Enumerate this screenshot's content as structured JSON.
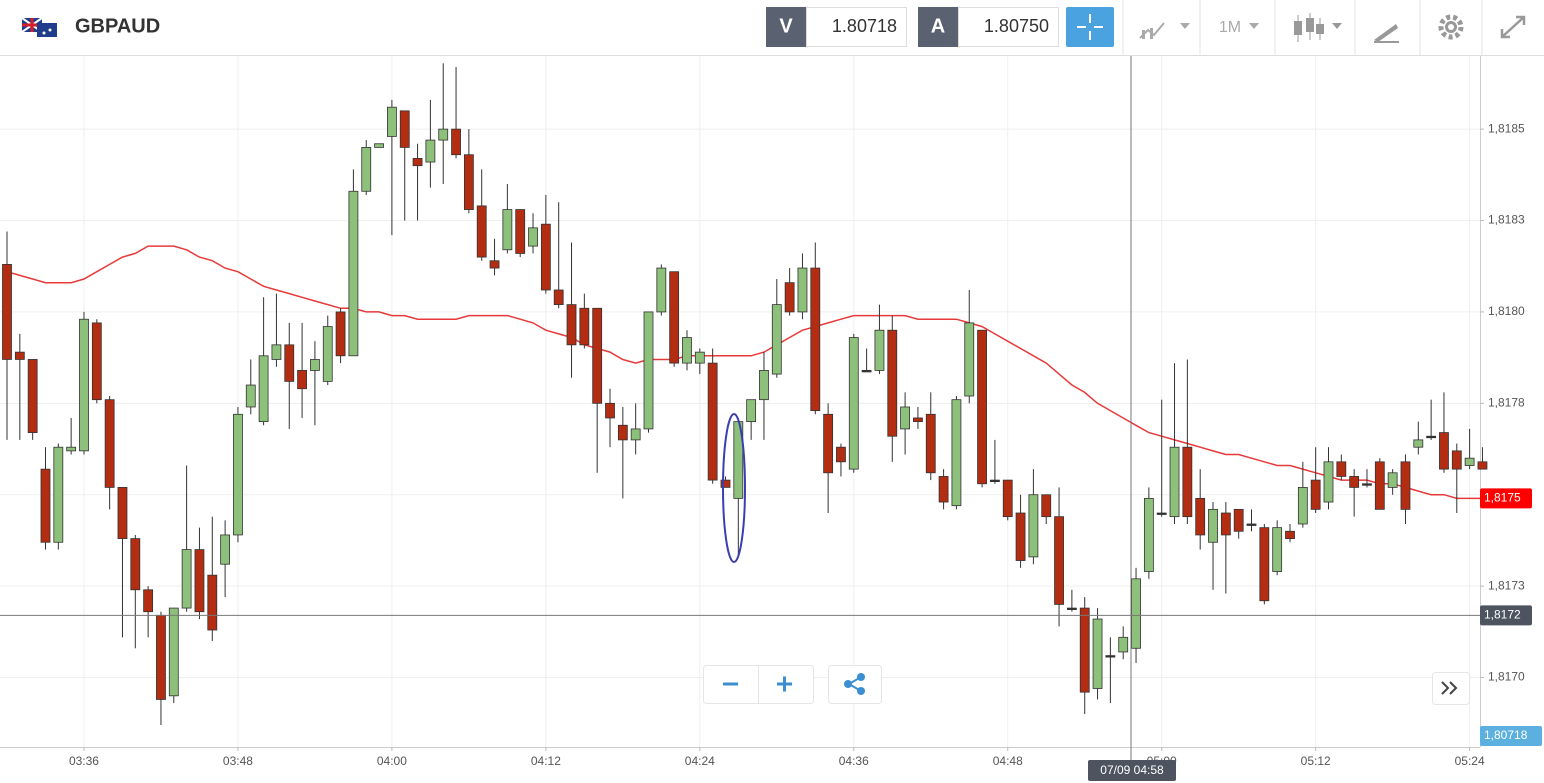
{
  "header": {
    "symbol": "GBPAUD",
    "bid_letter": "V",
    "bid": "1.80718",
    "ask_letter": "A",
    "ask": "1.80750",
    "timeframe": "1M"
  },
  "chart_data": {
    "type": "candlestick",
    "categories": [
      null,
      null,
      null,
      null,
      null,
      null,
      "03:36",
      null,
      null,
      null,
      null,
      null,
      null,
      null,
      null,
      null,
      null,
      null,
      "03:48",
      null,
      null,
      null,
      null,
      null,
      null,
      null,
      null,
      null,
      null,
      null,
      "04:00",
      null,
      null,
      null,
      null,
      null,
      null,
      null,
      null,
      null,
      null,
      null,
      "04:12",
      null,
      null,
      null,
      null,
      null,
      null,
      null,
      null,
      null,
      null,
      null,
      "04:24",
      null,
      null,
      null,
      null,
      null,
      null,
      null,
      null,
      null,
      null,
      null,
      "04:36",
      null,
      null,
      null,
      null,
      null,
      null,
      null,
      null,
      null,
      null,
      null,
      "04:48",
      null,
      null,
      null,
      null,
      null,
      null,
      null,
      null,
      null,
      null,
      null,
      "05:00",
      null,
      null,
      null,
      null,
      null,
      null,
      null,
      null,
      null,
      null,
      null,
      "05:12",
      null,
      null,
      null,
      null,
      null,
      null,
      null,
      null,
      null,
      null,
      null,
      "05:24",
      null
    ],
    "open": [
      1.81813,
      1.81789,
      1.81787,
      1.81757,
      1.81737,
      1.81762,
      1.81762,
      1.81797,
      1.81776,
      1.81752,
      1.81738,
      1.81724,
      1.81717,
      1.81695,
      1.81719,
      1.81735,
      1.81728,
      1.81731,
      1.81739,
      1.81774,
      1.8177,
      1.81787,
      1.81791,
      1.81784,
      1.81784,
      1.81781,
      1.818,
      1.81788,
      1.81833,
      1.81845,
      1.81848,
      1.81855,
      1.81842,
      1.81841,
      1.81847,
      1.8185,
      1.81843,
      1.81829,
      1.81814,
      1.81817,
      1.81828,
      1.81818,
      1.81824,
      1.81806,
      1.81802,
      1.81801,
      1.81801,
      1.81775,
      1.81769,
      1.81765,
      1.81768,
      1.818,
      1.81811,
      1.81786,
      1.81786,
      1.81786,
      1.81754,
      1.81749,
      1.8177,
      1.81776,
      1.81783,
      1.81808,
      1.818,
      1.81812,
      1.81772,
      1.81763,
      1.81757,
      1.81784,
      1.81784,
      1.81795,
      1.81768,
      1.81771,
      1.81772,
      1.81755,
      1.81747,
      1.81777,
      1.81795,
      1.81754,
      1.81754,
      1.81745,
      1.81733,
      1.8175,
      1.81744,
      1.81719,
      1.81719,
      1.81697,
      1.81706,
      1.81707,
      1.81708,
      1.81729,
      1.81745,
      1.81744,
      1.81763,
      1.81749,
      1.81737,
      1.81745,
      1.81746,
      1.81742,
      1.81741,
      1.81729,
      1.8174,
      1.81742,
      1.81754,
      1.81748,
      1.81759,
      1.81755,
      1.81753,
      1.81759,
      1.81752,
      1.81759,
      1.81763,
      1.81766,
      1.81767,
      1.81762,
      1.81758,
      1.81759
    ],
    "high": [
      1.81822,
      1.81794,
      1.81787,
      1.81763,
      1.81764,
      1.81771,
      1.818,
      1.81798,
      1.81777,
      1.81752,
      1.81739,
      1.81725,
      1.81718,
      1.81719,
      1.81758,
      1.81741,
      1.81744,
      1.81743,
      1.81774,
      1.81787,
      1.81804,
      1.81805,
      1.81797,
      1.81797,
      1.81792,
      1.81799,
      1.81801,
      1.81839,
      1.81847,
      1.81846,
      1.81858,
      1.81855,
      1.81846,
      1.81858,
      1.81868,
      1.81867,
      1.8185,
      1.81839,
      1.8182,
      1.81835,
      1.81828,
      1.81827,
      1.81832,
      1.8183,
      1.81819,
      1.81805,
      1.81801,
      1.81779,
      1.81774,
      1.81775,
      1.818,
      1.81813,
      1.81811,
      1.81795,
      1.8179,
      1.8179,
      1.81755,
      1.81771,
      1.81776,
      1.81789,
      1.81809,
      1.81812,
      1.81816,
      1.81819,
      1.81775,
      1.81764,
      1.81794,
      1.8179,
      1.81802,
      1.81799,
      1.81778,
      1.81774,
      1.81778,
      1.81757,
      1.81777,
      1.81806,
      1.81795,
      1.81765,
      1.81754,
      1.8175,
      1.81757,
      1.8175,
      1.81752,
      1.81724,
      1.81722,
      1.81719,
      1.81711,
      1.81714,
      1.8173,
      1.81752,
      1.81776,
      1.81786,
      1.81787,
      1.81757,
      1.81748,
      1.81748,
      1.81746,
      1.81746,
      1.81742,
      1.81743,
      1.81742,
      1.81759,
      1.81763,
      1.81763,
      1.81761,
      1.81757,
      1.81757,
      1.8176,
      1.81757,
      1.81761,
      1.8177,
      1.81776,
      1.81778,
      1.81764,
      1.81768,
      1.81763
    ],
    "low": [
      1.81765,
      1.81765,
      1.81765,
      1.81735,
      1.81735,
      1.81761,
      1.81761,
      1.81775,
      1.81746,
      1.81711,
      1.81708,
      1.81711,
      1.81687,
      1.81693,
      1.81718,
      1.81716,
      1.8171,
      1.81722,
      1.81737,
      1.81772,
      1.81769,
      1.81785,
      1.81768,
      1.81771,
      1.81769,
      1.8178,
      1.81786,
      1.81788,
      1.81832,
      1.81845,
      1.81821,
      1.81825,
      1.81825,
      1.81834,
      1.81835,
      1.81842,
      1.81827,
      1.81814,
      1.8181,
      1.81816,
      1.81815,
      1.81816,
      1.81805,
      1.81801,
      1.81782,
      1.8179,
      1.81756,
      1.81763,
      1.81749,
      1.81761,
      1.81767,
      1.81799,
      1.81785,
      1.81784,
      1.81783,
      1.81753,
      1.81752,
      1.81733,
      1.81765,
      1.81765,
      1.81782,
      1.81799,
      1.81798,
      1.81772,
      1.81745,
      1.81755,
      1.81756,
      1.81784,
      1.81783,
      1.81759,
      1.81761,
      1.81768,
      1.81754,
      1.81746,
      1.81746,
      1.81775,
      1.81752,
      1.81753,
      1.81743,
      1.8173,
      1.81731,
      1.81742,
      1.81714,
      1.81718,
      1.8169,
      1.81694,
      1.81693,
      1.81705,
      1.81704,
      1.81727,
      1.81744,
      1.81742,
      1.81742,
      1.81735,
      1.81724,
      1.81723,
      1.81738,
      1.8174,
      1.8172,
      1.81728,
      1.81737,
      1.81741,
      1.81745,
      1.81746,
      1.81754,
      1.81744,
      1.81752,
      1.81746,
      1.8175,
      1.81742,
      1.81761,
      1.81765,
      1.81756,
      1.81745,
      1.81757,
      1.81757
    ],
    "close": [
      1.81787,
      1.81787,
      1.81767,
      1.81737,
      1.81763,
      1.81763,
      1.81798,
      1.81776,
      1.81752,
      1.81738,
      1.81724,
      1.81718,
      1.81694,
      1.81719,
      1.81735,
      1.81718,
      1.81713,
      1.81739,
      1.81772,
      1.8178,
      1.81788,
      1.81791,
      1.81781,
      1.81779,
      1.81787,
      1.81796,
      1.81788,
      1.81833,
      1.81845,
      1.81846,
      1.81856,
      1.81845,
      1.8184,
      1.81847,
      1.8185,
      1.81843,
      1.81828,
      1.81815,
      1.81812,
      1.81828,
      1.81816,
      1.81823,
      1.81806,
      1.81802,
      1.81791,
      1.81791,
      1.81775,
      1.81771,
      1.81765,
      1.81768,
      1.818,
      1.81812,
      1.81786,
      1.81793,
      1.81789,
      1.81754,
      1.81752,
      1.8177,
      1.81776,
      1.81784,
      1.81802,
      1.818,
      1.81812,
      1.81773,
      1.81756,
      1.81759,
      1.81793,
      1.81784,
      1.81795,
      1.81766,
      1.81774,
      1.8177,
      1.81756,
      1.81748,
      1.81776,
      1.81797,
      1.81753,
      1.81754,
      1.81744,
      1.81732,
      1.8175,
      1.81744,
      1.8172,
      1.81719,
      1.81696,
      1.81716,
      1.81706,
      1.81711,
      1.81727,
      1.81749,
      1.81745,
      1.81763,
      1.81744,
      1.81739,
      1.81746,
      1.81739,
      1.8174,
      1.81742,
      1.81721,
      1.81741,
      1.81738,
      1.81752,
      1.81746,
      1.81759,
      1.81755,
      1.81752,
      1.81753,
      1.81746,
      1.81756,
      1.81746,
      1.81765,
      1.81766,
      1.81757,
      1.81757,
      1.8176,
      1.81757
    ],
    "up_color": "#8dc07a",
    "down_color": "#b32d12",
    "moving_average": {
      "color": "#e8393a",
      "values": [
        1.81811,
        1.8181,
        1.81809,
        1.81808,
        1.81808,
        1.81808,
        1.81809,
        1.81811,
        1.81813,
        1.81815,
        1.81816,
        1.81818,
        1.81818,
        1.81818,
        1.81817,
        1.81815,
        1.81814,
        1.81812,
        1.81811,
        1.81809,
        1.81807,
        1.81806,
        1.81805,
        1.81804,
        1.81803,
        1.81802,
        1.81801,
        1.81801,
        1.818,
        1.818,
        1.81799,
        1.81799,
        1.81798,
        1.81798,
        1.81798,
        1.81798,
        1.81799,
        1.81799,
        1.81799,
        1.81799,
        1.81798,
        1.81797,
        1.81795,
        1.81794,
        1.81793,
        1.81791,
        1.8179,
        1.81789,
        1.81787,
        1.81786,
        1.81787,
        1.81787,
        1.81787,
        1.81788,
        1.81788,
        1.81788,
        1.81788,
        1.81788,
        1.81788,
        1.81789,
        1.81791,
        1.81793,
        1.81795,
        1.81796,
        1.81797,
        1.81798,
        1.81799,
        1.81799,
        1.81799,
        1.81799,
        1.81799,
        1.81798,
        1.81798,
        1.81798,
        1.81798,
        1.81797,
        1.81796,
        1.81794,
        1.81792,
        1.8179,
        1.81788,
        1.81786,
        1.81783,
        1.8178,
        1.81778,
        1.81775,
        1.81773,
        1.81771,
        1.81769,
        1.81767,
        1.81766,
        1.81765,
        1.81764,
        1.81763,
        1.81762,
        1.81761,
        1.81761,
        1.8176,
        1.81759,
        1.81758,
        1.81758,
        1.81757,
        1.81756,
        1.81755,
        1.81754,
        1.81754,
        1.81754,
        1.81753,
        1.81753,
        1.81752,
        1.81751,
        1.8175,
        1.8175,
        1.81749,
        1.81749,
        1.81749
      ]
    },
    "ylim": [
      1.81681,
      1.8187
    ],
    "yticks": [
      {
        "value": 1.817,
        "label": "1,8170"
      },
      {
        "value": 1.81725,
        "label": "1,8173"
      },
      {
        "value": 1.8175,
        "label": "1,8175"
      },
      {
        "value": 1.81775,
        "label": "1,8178"
      },
      {
        "value": 1.818,
        "label": "1,8180"
      },
      {
        "value": 1.81825,
        "label": "1,8183"
      },
      {
        "value": 1.8185,
        "label": "1,8185"
      }
    ],
    "grid": true,
    "price_tags": [
      {
        "value": 1.81749,
        "label": "1,8175",
        "color": "#ff0000"
      },
      {
        "value": 1.81717,
        "label": "1,8172",
        "color": "#4d5460"
      }
    ],
    "bid_tag": {
      "label": "1,80718",
      "color": "#5bb0e0"
    },
    "crosshair_time": "07/09 04:58"
  }
}
